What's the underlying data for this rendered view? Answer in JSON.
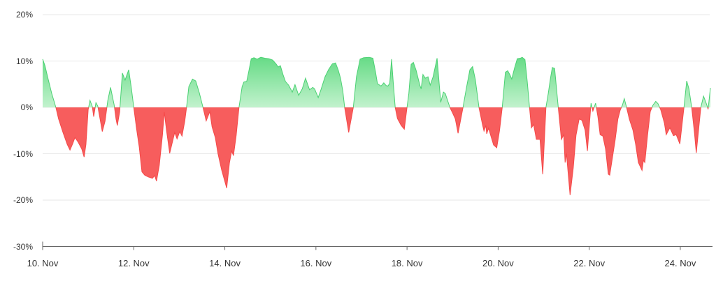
{
  "chart_data": {
    "type": "area",
    "title": "",
    "description": "Percentage change area chart: green above 0%, red below 0%",
    "x_unit": "days since 10. Nov",
    "x_axis": {
      "tick_labels": [
        "10. Nov",
        "12. Nov",
        "14. Nov",
        "16. Nov",
        "18. Nov",
        "20. Nov",
        "22. Nov",
        "24. Nov"
      ],
      "tick_days": [
        0,
        2,
        4,
        6,
        8,
        10,
        12,
        14
      ]
    },
    "y_axis": {
      "tick_labels": [
        "20%",
        "10%",
        "0%",
        "-10%",
        "-20%",
        "-30%"
      ],
      "tick_values": [
        20,
        10,
        0,
        -10,
        -20,
        -30
      ]
    },
    "ylim": [
      -30,
      20
    ],
    "xlim_days": [
      0,
      14.66
    ],
    "grid": true,
    "legend": "none",
    "series": [
      {
        "name": "percent-change",
        "unit": "%",
        "points": [
          [
            0.0,
            10.4
          ],
          [
            0.05,
            9.0
          ],
          [
            0.11,
            6.5
          ],
          [
            0.2,
            3.0
          ],
          [
            0.29,
            0.0
          ],
          [
            0.35,
            -2.5
          ],
          [
            0.45,
            -5.5
          ],
          [
            0.54,
            -8.0
          ],
          [
            0.6,
            -9.2
          ],
          [
            0.66,
            -7.8
          ],
          [
            0.71,
            -6.5
          ],
          [
            0.78,
            -7.5
          ],
          [
            0.86,
            -9.0
          ],
          [
            0.91,
            -10.7
          ],
          [
            0.95,
            -8.0
          ],
          [
            1.0,
            -0.5
          ],
          [
            1.04,
            1.5
          ],
          [
            1.09,
            0.2
          ],
          [
            1.12,
            -2.0
          ],
          [
            1.17,
            1.0
          ],
          [
            1.21,
            0.3
          ],
          [
            1.26,
            -2.5
          ],
          [
            1.31,
            -5.2
          ],
          [
            1.37,
            -3.0
          ],
          [
            1.43,
            1.5
          ],
          [
            1.49,
            4.3
          ],
          [
            1.57,
            0.5
          ],
          [
            1.61,
            -2.5
          ],
          [
            1.64,
            -3.9
          ],
          [
            1.69,
            -1.0
          ],
          [
            1.75,
            7.4
          ],
          [
            1.81,
            5.9
          ],
          [
            1.89,
            8.1
          ],
          [
            1.95,
            4.0
          ],
          [
            2.0,
            0.0
          ],
          [
            2.06,
            -4.5
          ],
          [
            2.12,
            -8.5
          ],
          [
            2.18,
            -13.9
          ],
          [
            2.24,
            -14.6
          ],
          [
            2.32,
            -15.0
          ],
          [
            2.41,
            -15.3
          ],
          [
            2.46,
            -14.7
          ],
          [
            2.5,
            -15.9
          ],
          [
            2.56,
            -12.5
          ],
          [
            2.63,
            -6.0
          ],
          [
            2.67,
            -1.0
          ],
          [
            2.72,
            -5.0
          ],
          [
            2.79,
            -9.9
          ],
          [
            2.86,
            -7.0
          ],
          [
            2.9,
            -5.4
          ],
          [
            2.95,
            -6.8
          ],
          [
            3.01,
            -5.2
          ],
          [
            3.06,
            -6.2
          ],
          [
            3.12,
            -3.0
          ],
          [
            3.16,
            0.0
          ],
          [
            3.21,
            4.5
          ],
          [
            3.29,
            6.1
          ],
          [
            3.36,
            5.7
          ],
          [
            3.44,
            3.1
          ],
          [
            3.52,
            0.0
          ],
          [
            3.59,
            -2.9
          ],
          [
            3.67,
            -0.9
          ],
          [
            3.72,
            -4.2
          ],
          [
            3.79,
            -6.5
          ],
          [
            3.85,
            -10.0
          ],
          [
            3.93,
            -13.5
          ],
          [
            4.04,
            -17.4
          ],
          [
            4.1,
            -12.0
          ],
          [
            4.15,
            -9.4
          ],
          [
            4.19,
            -10.4
          ],
          [
            4.25,
            -6.0
          ],
          [
            4.31,
            0.0
          ],
          [
            4.38,
            4.5
          ],
          [
            4.42,
            5.5
          ],
          [
            4.48,
            5.6
          ],
          [
            4.53,
            8.0
          ],
          [
            4.58,
            10.5
          ],
          [
            4.64,
            10.7
          ],
          [
            4.71,
            10.4
          ],
          [
            4.79,
            10.8
          ],
          [
            4.88,
            10.6
          ],
          [
            4.97,
            10.5
          ],
          [
            5.05,
            10.2
          ],
          [
            5.13,
            9.3
          ],
          [
            5.17,
            8.7
          ],
          [
            5.22,
            9.0
          ],
          [
            5.28,
            7.0
          ],
          [
            5.33,
            5.6
          ],
          [
            5.4,
            4.8
          ],
          [
            5.48,
            3.3
          ],
          [
            5.54,
            4.9
          ],
          [
            5.62,
            2.6
          ],
          [
            5.7,
            4.0
          ],
          [
            5.77,
            6.3
          ],
          [
            5.86,
            3.8
          ],
          [
            5.93,
            4.3
          ],
          [
            5.97,
            4.0
          ],
          [
            6.05,
            2.1
          ],
          [
            6.11,
            3.8
          ],
          [
            6.2,
            6.6
          ],
          [
            6.28,
            8.2
          ],
          [
            6.36,
            9.4
          ],
          [
            6.43,
            9.6
          ],
          [
            6.49,
            8.0
          ],
          [
            6.54,
            6.3
          ],
          [
            6.59,
            3.5
          ],
          [
            6.63,
            0.0
          ],
          [
            6.72,
            -5.4
          ],
          [
            6.82,
            0.0
          ],
          [
            6.89,
            6.6
          ],
          [
            6.97,
            10.4
          ],
          [
            7.05,
            10.7
          ],
          [
            7.17,
            10.8
          ],
          [
            7.25,
            10.6
          ],
          [
            7.31,
            7.5
          ],
          [
            7.35,
            5.1
          ],
          [
            7.43,
            4.6
          ],
          [
            7.49,
            5.3
          ],
          [
            7.54,
            4.7
          ],
          [
            7.58,
            4.6
          ],
          [
            7.62,
            5.2
          ],
          [
            7.66,
            10.4
          ],
          [
            7.7,
            5.0
          ],
          [
            7.74,
            0.0
          ],
          [
            7.79,
            -2.4
          ],
          [
            7.87,
            -3.9
          ],
          [
            7.94,
            -4.7
          ],
          [
            8.0,
            0.0
          ],
          [
            8.04,
            3.0
          ],
          [
            8.09,
            9.3
          ],
          [
            8.14,
            9.7
          ],
          [
            8.2,
            8.0
          ],
          [
            8.28,
            4.8
          ],
          [
            8.31,
            4.0
          ],
          [
            8.35,
            7.1
          ],
          [
            8.4,
            6.3
          ],
          [
            8.46,
            6.6
          ],
          [
            8.51,
            4.8
          ],
          [
            8.57,
            6.5
          ],
          [
            8.66,
            10.6
          ],
          [
            8.74,
            1.1
          ],
          [
            8.8,
            3.3
          ],
          [
            8.84,
            3.0
          ],
          [
            8.94,
            0.0
          ],
          [
            9.0,
            -1.2
          ],
          [
            9.06,
            -2.5
          ],
          [
            9.12,
            -5.6
          ],
          [
            9.23,
            0.0
          ],
          [
            9.3,
            4.0
          ],
          [
            9.38,
            8.1
          ],
          [
            9.44,
            8.8
          ],
          [
            9.5,
            6.0
          ],
          [
            9.58,
            0.0
          ],
          [
            9.66,
            -3.9
          ],
          [
            9.69,
            -5.1
          ],
          [
            9.73,
            -3.9
          ],
          [
            9.75,
            -5.7
          ],
          [
            9.79,
            -4.5
          ],
          [
            9.9,
            -8.1
          ],
          [
            9.97,
            -8.7
          ],
          [
            10.03,
            -5.0
          ],
          [
            10.09,
            0.0
          ],
          [
            10.16,
            7.6
          ],
          [
            10.21,
            7.9
          ],
          [
            10.26,
            7.0
          ],
          [
            10.3,
            6.1
          ],
          [
            10.36,
            8.5
          ],
          [
            10.42,
            10.5
          ],
          [
            10.49,
            10.6
          ],
          [
            10.53,
            10.8
          ],
          [
            10.59,
            10.3
          ],
          [
            10.64,
            5.5
          ],
          [
            10.69,
            0.0
          ],
          [
            10.73,
            -4.4
          ],
          [
            10.78,
            -3.7
          ],
          [
            10.84,
            -6.9
          ],
          [
            10.92,
            -6.9
          ],
          [
            10.98,
            -14.4
          ],
          [
            11.05,
            0.0
          ],
          [
            11.1,
            3.0
          ],
          [
            11.15,
            6.3
          ],
          [
            11.19,
            8.6
          ],
          [
            11.24,
            8.4
          ],
          [
            11.32,
            0.0
          ],
          [
            11.39,
            -6.9
          ],
          [
            11.44,
            -5.9
          ],
          [
            11.47,
            -11.9
          ],
          [
            11.5,
            -9.9
          ],
          [
            11.58,
            -18.9
          ],
          [
            11.65,
            -13.0
          ],
          [
            11.71,
            -6.0
          ],
          [
            11.78,
            -2.5
          ],
          [
            11.84,
            -2.8
          ],
          [
            11.91,
            -4.9
          ],
          [
            11.96,
            -9.4
          ],
          [
            12.01,
            -3.0
          ],
          [
            12.04,
            0.9
          ],
          [
            12.08,
            -0.8
          ],
          [
            12.14,
            0.9
          ],
          [
            12.19,
            -2.0
          ],
          [
            12.24,
            -5.9
          ],
          [
            12.3,
            -6.2
          ],
          [
            12.36,
            -9.0
          ],
          [
            12.42,
            -14.4
          ],
          [
            12.45,
            -14.6
          ],
          [
            12.5,
            -11.4
          ],
          [
            12.57,
            -7.0
          ],
          [
            12.63,
            -2.5
          ],
          [
            12.68,
            -0.6
          ],
          [
            12.73,
            0.5
          ],
          [
            12.77,
            1.9
          ],
          [
            12.82,
            0.0
          ],
          [
            12.88,
            -2.5
          ],
          [
            12.96,
            -4.9
          ],
          [
            13.02,
            -8.0
          ],
          [
            13.08,
            -11.9
          ],
          [
            13.16,
            -13.6
          ],
          [
            13.19,
            -11.4
          ],
          [
            13.22,
            -11.9
          ],
          [
            13.28,
            -6.0
          ],
          [
            13.34,
            -0.9
          ],
          [
            13.4,
            0.5
          ],
          [
            13.46,
            1.3
          ],
          [
            13.51,
            0.8
          ],
          [
            13.57,
            -0.5
          ],
          [
            13.65,
            -3.4
          ],
          [
            13.69,
            -5.9
          ],
          [
            13.77,
            -4.4
          ],
          [
            13.85,
            -6.1
          ],
          [
            13.91,
            -5.9
          ],
          [
            13.99,
            -7.9
          ],
          [
            14.08,
            0.0
          ],
          [
            14.14,
            5.7
          ],
          [
            14.19,
            4.0
          ],
          [
            14.25,
            0.0
          ],
          [
            14.31,
            -5.5
          ],
          [
            14.35,
            -9.8
          ],
          [
            14.45,
            0.0
          ],
          [
            14.51,
            2.4
          ],
          [
            14.58,
            0.6
          ],
          [
            14.61,
            -0.4
          ],
          [
            14.66,
            4.2
          ]
        ]
      }
    ],
    "colors": {
      "positive_fill_top": "#66db86",
      "positive_fill_bottom": "#c2f2cd",
      "positive_line": "#4bd173",
      "negative_fill": "#f75d5d",
      "negative_line": "#f54848",
      "grid": "#e7e7e7",
      "axis": "#666666",
      "label": "#333333"
    }
  }
}
